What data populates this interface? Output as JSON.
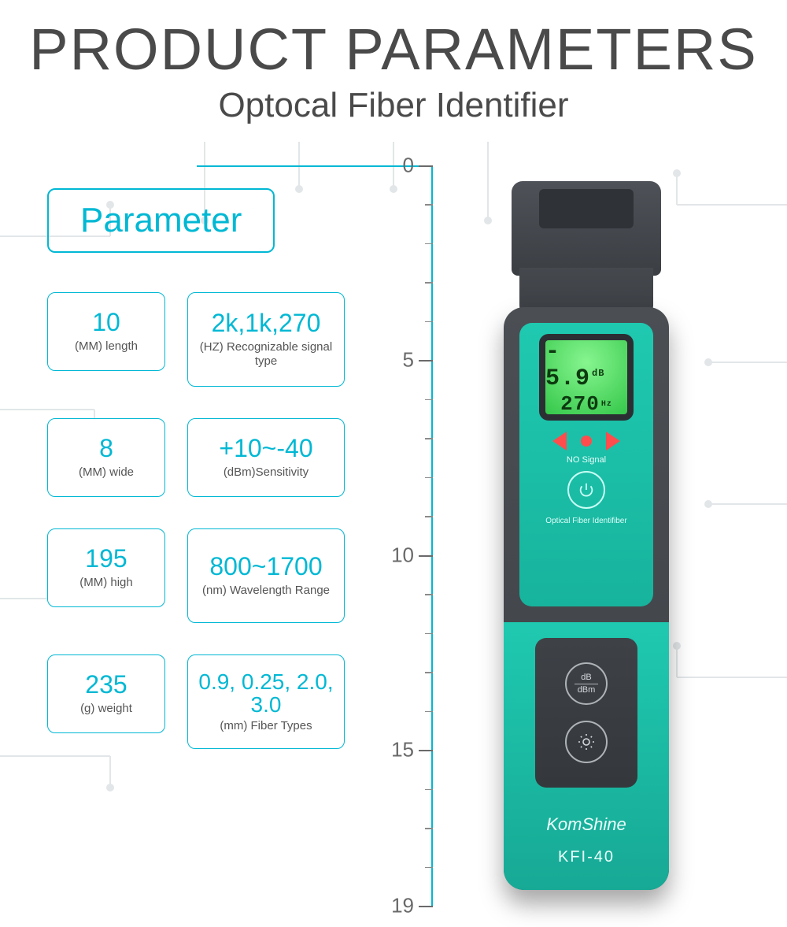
{
  "header": {
    "title": "PRODUCT PARAMETERS",
    "subtitle": "Optocal Fiber Identifier"
  },
  "parameter_header": "Parameter",
  "cards": [
    {
      "value": "10",
      "label": "(MM) length",
      "size": "small"
    },
    {
      "value": "2k,1k,270",
      "label": "(HZ) Recognizable signal type",
      "size": "tall"
    },
    {
      "value": "8",
      "label": "(MM) wide",
      "size": "small"
    },
    {
      "value": "+10~-40",
      "label": "(dBm)Sensitivity",
      "size": "small"
    },
    {
      "value": "195",
      "label": "(MM) high",
      "size": "small"
    },
    {
      "value": "800~1700",
      "label": "(nm) Wavelength Range",
      "size": "tall"
    },
    {
      "value": "235",
      "label": "(g) weight",
      "size": "small"
    },
    {
      "value": "0.9, 0.25, 2.0, 3.0",
      "label": "(mm) Fiber Types",
      "size": "tall"
    }
  ],
  "ruler": {
    "min": 0,
    "max": 19,
    "major_labels": [
      0,
      5,
      10,
      15,
      19
    ],
    "color": "#00b8d4",
    "tick_color": "#8a8a8a",
    "label_color": "#6a6a6a",
    "label_fontsize": 26
  },
  "device": {
    "brand": "KomShine",
    "model": "KFI-40",
    "lcd": {
      "top_value": "5.9",
      "top_unit": "dB",
      "prefix": "-",
      "bottom_value": "270",
      "bottom_unit": "Hz"
    },
    "no_signal_text": "NO Signal",
    "face_caption": "Optical Fiber Identifiber",
    "btn_db_top": "dB",
    "btn_db_bot": "dBm",
    "colors": {
      "body": "#3e4247",
      "teal": "#1fc9b0",
      "lcd_bg": "#34c74a",
      "arrow": "#ff4d4d",
      "text_light": "#eafffb"
    }
  },
  "colors": {
    "accent": "#00b8d4",
    "title": "#4a4a4a",
    "card_border": "#00b8d4",
    "card_label": "#555555",
    "background": "#ffffff",
    "circuit": "#dfe3e5"
  }
}
